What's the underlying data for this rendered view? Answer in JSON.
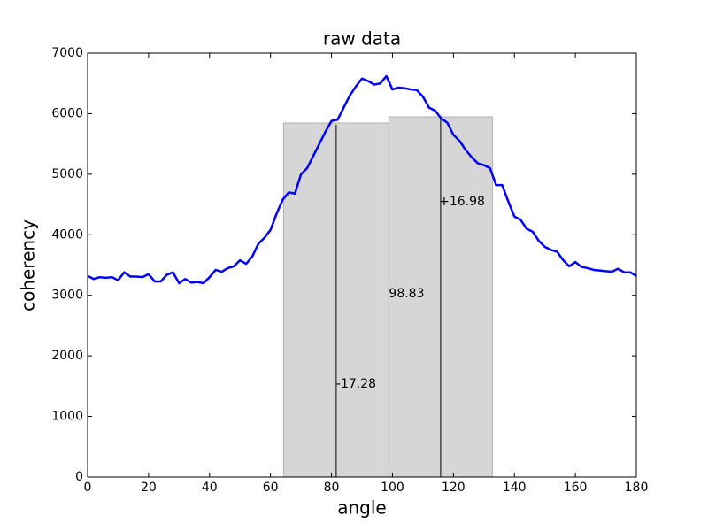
{
  "chart_data": {
    "type": "line",
    "title": "raw data",
    "xlabel": "angle",
    "ylabel": "coherency",
    "xlim": [
      0,
      180
    ],
    "ylim": [
      0,
      7000
    ],
    "xticks": [
      0,
      20,
      40,
      60,
      80,
      100,
      120,
      140,
      160,
      180
    ],
    "yticks": [
      0,
      1000,
      2000,
      3000,
      4000,
      5000,
      6000,
      7000
    ],
    "x": [
      0,
      2,
      4,
      6,
      8,
      10,
      12,
      14,
      16,
      18,
      20,
      22,
      24,
      26,
      28,
      30,
      32,
      34,
      36,
      38,
      40,
      42,
      44,
      46,
      48,
      50,
      52,
      54,
      56,
      58,
      60,
      62,
      64,
      66,
      68,
      70,
      72,
      74,
      76,
      78,
      80,
      82,
      84,
      86,
      88,
      90,
      92,
      94,
      96,
      98,
      100,
      102,
      104,
      106,
      108,
      110,
      112,
      114,
      116,
      118,
      120,
      122,
      124,
      126,
      128,
      130,
      132,
      134,
      136,
      138,
      140,
      142,
      144,
      146,
      148,
      150,
      152,
      154,
      156,
      158,
      160,
      162,
      164,
      166,
      168,
      170,
      172,
      174,
      176,
      178,
      180
    ],
    "series": [
      {
        "color": "#0000ff",
        "values": [
          3320,
          3270,
          3300,
          3290,
          3300,
          3250,
          3380,
          3310,
          3310,
          3300,
          3350,
          3230,
          3230,
          3340,
          3380,
          3200,
          3270,
          3210,
          3220,
          3200,
          3300,
          3420,
          3390,
          3450,
          3480,
          3580,
          3520,
          3640,
          3850,
          3950,
          4080,
          4350,
          4580,
          4700,
          4680,
          5000,
          5100,
          5300,
          5500,
          5700,
          5880,
          5900,
          6100,
          6300,
          6450,
          6580,
          6540,
          6480,
          6500,
          6620,
          6400,
          6430,
          6420,
          6400,
          6390,
          6280,
          6100,
          6050,
          5920,
          5850,
          5650,
          5550,
          5400,
          5280,
          5180,
          5150,
          5100,
          4820,
          4820,
          4550,
          4300,
          4250,
          4100,
          4050,
          3900,
          3800,
          3750,
          3720,
          3580,
          3480,
          3550,
          3470,
          3450,
          3420,
          3410,
          3400,
          3390,
          3440,
          3380,
          3380,
          3320
        ]
      }
    ],
    "spans": [
      {
        "x0": 64.27,
        "x1": 98.83,
        "height": 5845,
        "color": "#d6d6d6"
      },
      {
        "x0": 98.83,
        "x1": 132.79,
        "height": 5948,
        "color": "#d6d6d6"
      }
    ],
    "vlines": [
      {
        "x": 81.55,
        "height": 5816
      },
      {
        "x": 115.81,
        "height": 5948
      }
    ],
    "annotations": [
      {
        "text": "-17.28",
        "x": 81.55,
        "y": 1535
      },
      {
        "text": "98.83",
        "x": 98.83,
        "y": 3025
      },
      {
        "text": "+16.98",
        "x": 115.3,
        "y": 4545
      }
    ]
  }
}
